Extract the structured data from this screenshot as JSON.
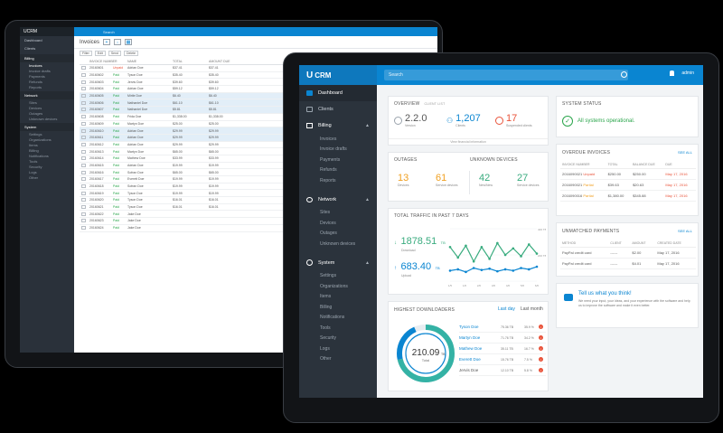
{
  "back": {
    "top_label": "Search",
    "logo": "UCRM",
    "title": "Invoices",
    "user": "admin",
    "nav": [
      {
        "label": "Dashboard",
        "sec": false
      },
      {
        "label": "Clients",
        "sec": false
      },
      {
        "label": "Billing",
        "sec": true
      },
      {
        "label": "Invoices",
        "sub": true,
        "on": true
      },
      {
        "label": "Invoice drafts",
        "sub": true
      },
      {
        "label": "Payments",
        "sub": true
      },
      {
        "label": "Refunds",
        "sub": true
      },
      {
        "label": "Reports",
        "sub": true
      },
      {
        "label": "Network",
        "sec": true
      },
      {
        "label": "Sites",
        "sub": true
      },
      {
        "label": "Devices",
        "sub": true
      },
      {
        "label": "Outages",
        "sub": true
      },
      {
        "label": "Unknown devices",
        "sub": true
      },
      {
        "label": "System",
        "sec": true
      },
      {
        "label": "Settings",
        "sub": true
      },
      {
        "label": "Organizations",
        "sub": true
      },
      {
        "label": "Items",
        "sub": true
      },
      {
        "label": "Billing",
        "sub": true
      },
      {
        "label": "Notifications",
        "sub": true
      },
      {
        "label": "Tools",
        "sub": true
      },
      {
        "label": "Security",
        "sub": true
      },
      {
        "label": "Logs",
        "sub": true
      },
      {
        "label": "Other",
        "sub": true
      }
    ],
    "tools": [
      "Filter",
      "Edit",
      "Send",
      "Delete"
    ],
    "headers": [
      "INVOICE NUMBER",
      "NAME",
      "TOTAL",
      "AMOUNT DUE"
    ],
    "rows": [
      [
        "20160601",
        "Unpaid",
        "Adrian Doe",
        "$37.41",
        "$37.41",
        false
      ],
      [
        "20160602",
        "Paid",
        "Tyson Doe",
        "$35.40",
        "$35.40",
        false
      ],
      [
        "20160603",
        "Paid",
        "Jervis Doe",
        "$39.60",
        "$39.60",
        false
      ],
      [
        "20160604",
        "Paid",
        "Adrian Doe",
        "$59.12",
        "$59.12",
        false
      ],
      [
        "20160605",
        "Paid",
        "Mirtle Doe",
        "$6.40",
        "$6.40",
        true
      ],
      [
        "20160606",
        "Paid",
        "Nathaniel Doe",
        "$61.10",
        "$61.10",
        true
      ],
      [
        "20160607",
        "Paid",
        "Nathaniel Doe",
        "$5.81",
        "$5.81",
        true
      ],
      [
        "20160608",
        "Paid",
        "Frida Doe",
        "$1,338.00",
        "$1,338.00",
        false
      ],
      [
        "20160609",
        "Paid",
        "Martyn Doe",
        "$25.00",
        "$25.00",
        false
      ],
      [
        "20160610",
        "Paid",
        "Adrian Doe",
        "$29.99",
        "$29.99",
        true
      ],
      [
        "20160611",
        "Paid",
        "Adrian Doe",
        "$29.99",
        "$29.99",
        true
      ],
      [
        "20160612",
        "Paid",
        "Adrian Doe",
        "$29.99",
        "$29.99",
        false
      ],
      [
        "20160613",
        "Paid",
        "Martyn Doe",
        "$65.00",
        "$65.00",
        false
      ],
      [
        "20160614",
        "Paid",
        "Mathew Doe",
        "$33.99",
        "$33.99",
        false
      ],
      [
        "20160615",
        "Paid",
        "Adrian Doe",
        "$19.99",
        "$19.99",
        false
      ],
      [
        "20160616",
        "Paid",
        "Sofran Doe",
        "$65.00",
        "$65.00",
        false
      ],
      [
        "20160617",
        "Paid",
        "Everett Doe",
        "$19.99",
        "$19.99",
        false
      ],
      [
        "20160618",
        "Paid",
        "Sofran Doe",
        "$19.99",
        "$19.99",
        false
      ],
      [
        "20160619",
        "Paid",
        "Tyson Doe",
        "$19.99",
        "$19.99",
        false
      ],
      [
        "20160620",
        "Paid",
        "Tyson Doe",
        "$16.01",
        "$16.01",
        false
      ],
      [
        "20160621",
        "Paid",
        "Tyson Doe",
        "$16.01",
        "$16.01",
        false
      ],
      [
        "20160622",
        "Paid",
        "Jake Doe",
        "",
        "",
        false
      ],
      [
        "20160623",
        "Paid",
        "Jake Doe",
        "",
        "",
        false
      ],
      [
        "20160624",
        "Paid",
        "Jake Doe",
        "",
        "",
        false
      ]
    ]
  },
  "front": {
    "logo": "CRM",
    "search_placeholder": "Search",
    "user": "admin",
    "nav": {
      "dashboard": "Dashboard",
      "clients": "Clients",
      "billing": "Billing",
      "billing_items": [
        "Invoices",
        "Invoice drafts",
        "Payments",
        "Refunds",
        "Reports"
      ],
      "network": "Network",
      "network_items": [
        "Sites",
        "Devices",
        "Outages",
        "Unknown devices"
      ],
      "system": "System",
      "system_items": [
        "Settings",
        "Organizations",
        "Items",
        "Billing",
        "Notifications",
        "Tools",
        "Security",
        "Logs",
        "Other"
      ]
    },
    "overview": {
      "title": "OVERVIEW",
      "subtitle": "CLIENT LIST",
      "version_value": "2.2.0",
      "version_label": "Version",
      "clients_value": "1,207",
      "clients_label": "Clients",
      "suspended_value": "17",
      "suspended_label": "Suspended clients",
      "link": "View financial information"
    },
    "outages": {
      "title": "OUTAGES",
      "devices_value": "13",
      "devices_label": "Devices",
      "service_value": "61",
      "service_label": "Service devices"
    },
    "unknown": {
      "title": "UNKNOWN DEVICES",
      "new_value": "42",
      "new_label": "New/New",
      "service_value": "27",
      "service_label": "Service devices"
    },
    "traffic": {
      "title": "TOTAL TRAFFIC IN PAST 7 DAYS",
      "download_value": "1878.51",
      "download_unit": "TB",
      "download_label": "Download",
      "upload_value": "683.40",
      "upload_unit": "TB",
      "upload_label": "Upload",
      "y_ticks": [
        "400 TB",
        "200 TB"
      ],
      "x_ticks": [
        "1/5",
        "1/6",
        "2/6",
        "3/6",
        "4/6",
        "5/6",
        "6/6"
      ],
      "download_series": [
        260,
        180,
        270,
        150,
        260,
        170,
        290,
        200,
        250,
        190,
        280,
        210
      ],
      "upload_series": [
        80,
        90,
        70,
        100,
        85,
        95,
        75,
        90,
        80,
        100,
        90,
        110
      ]
    },
    "downloaders": {
      "title": "HIGHEST DOWNLOADERS",
      "tab_day": "Last day",
      "tab_month": "Last month",
      "total_value": "210.09",
      "total_unit": "TB",
      "total_label": "Total",
      "rows": [
        {
          "name": "Tyson Doe",
          "tb": "75.36 TB",
          "pct": "35.9 %",
          "color": "#0a85d1"
        },
        {
          "name": "Martyn Doe",
          "tb": "71.76 TB",
          "pct": "34.2 %",
          "color": "#0a85d1"
        },
        {
          "name": "Mathew Doe",
          "tb": "35.11 TB",
          "pct": "16.7 %",
          "color": "#0a85d1"
        },
        {
          "name": "Everett Doe",
          "tb": "15.76 TB",
          "pct": "7.5 %",
          "color": "#0a85d1"
        },
        {
          "name": "Jervis Doe",
          "tb": "12.10 TB",
          "pct": "5.8 %",
          "color": "#555"
        }
      ]
    },
    "system_status": {
      "title": "SYSTEM STATUS",
      "message": "All systems operational."
    },
    "overdue": {
      "title": "OVERDUE INVOICES",
      "see_all": "SEE ALL",
      "headers": [
        "INVOICE NUMBER",
        "TOTAL",
        "BALANCE DUE",
        "DUE"
      ],
      "rows": [
        [
          "2016090021",
          "Unpaid",
          "$250.00",
          "$250.00",
          "May 17, 2016"
        ],
        [
          "2016090021",
          "Partial",
          "$39.63",
          "$20.63",
          "May 17, 2016"
        ],
        [
          "2016090016",
          "Partial",
          "$1,380.00",
          "$345.88",
          "May 17, 2016"
        ]
      ]
    },
    "unmatched": {
      "title": "UNMATCHED PAYMENTS",
      "see_all": "SEE ALL",
      "headers": [
        "METHOD",
        "CLIENT",
        "AMOUNT",
        "CREATED DATE"
      ],
      "rows": [
        [
          "PayPal credit card",
          "------",
          "$2.00",
          "May 17, 2016"
        ],
        [
          "PayPal credit card",
          "------",
          "$4.01",
          "May 17, 2016"
        ]
      ]
    },
    "feedback": {
      "title": "Tell us what you think!",
      "text": "We need your input, your ideas, and your experience with the software and help us to improve the software and make it even better."
    }
  }
}
